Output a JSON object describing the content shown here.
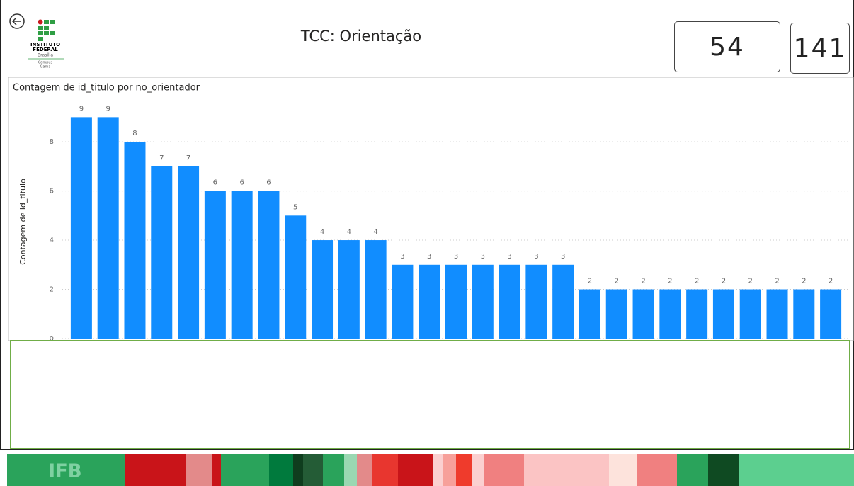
{
  "header": {
    "title": "TCC: Orientação",
    "cards": [
      "54",
      "141"
    ],
    "logo": [
      "INSTITUTO",
      "FEDERAL",
      "Brasília",
      "Campus",
      "Gama"
    ]
  },
  "chart_data": {
    "type": "bar",
    "title": "Contagem de id_titulo por no_orientador",
    "y_label": "Contagem de id_titulo",
    "categories": [
      null,
      null,
      null,
      null,
      null,
      null,
      null,
      null,
      null,
      null,
      null,
      null,
      null,
      null,
      null,
      null,
      null,
      null,
      null,
      null,
      null,
      null,
      null,
      null,
      null,
      null,
      null,
      null,
      null
    ],
    "values": [
      9,
      9,
      8,
      7,
      7,
      6,
      6,
      6,
      5,
      4,
      4,
      4,
      3,
      3,
      3,
      3,
      3,
      3,
      3,
      2,
      2,
      2,
      2,
      2,
      2,
      2,
      2,
      2,
      2
    ],
    "color": "#118dff",
    "ylim": [
      0,
      9.5
    ],
    "yticks": [
      0,
      2,
      4,
      6,
      8
    ],
    "grid": true
  }
}
